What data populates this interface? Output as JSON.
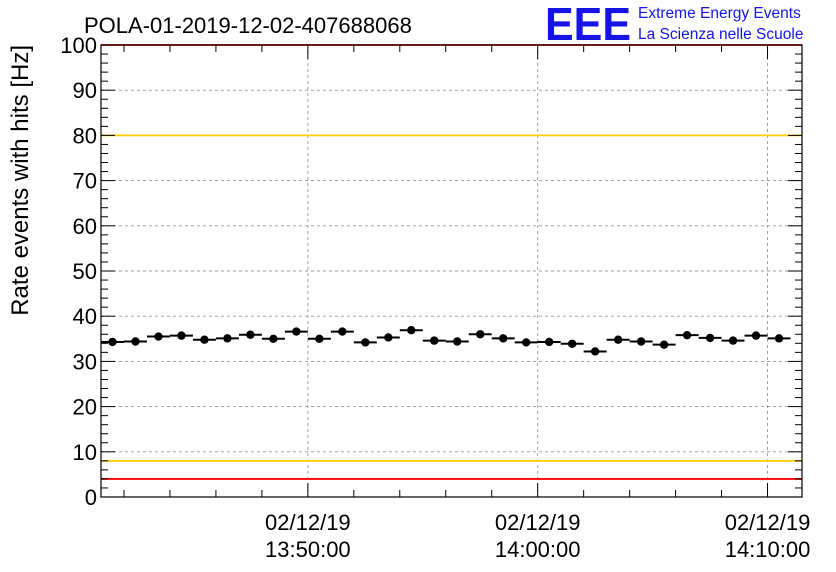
{
  "chart_data": {
    "type": "scatter",
    "title": "POLA-01-2019-12-02-407688068",
    "ylabel": "Rate events with hits [Hz]",
    "xlabel": "",
    "ylim": [
      0,
      100
    ],
    "yticks": [
      0,
      10,
      20,
      30,
      40,
      50,
      60,
      70,
      80,
      90,
      100
    ],
    "xlim_minutes": [
      0,
      30.5
    ],
    "xticks": [
      {
        "minute": 9,
        "date": "02/12/19",
        "time": "13:50:00"
      },
      {
        "minute": 19,
        "date": "02/12/19",
        "time": "14:00:00"
      },
      {
        "minute": 29,
        "date": "02/12/19",
        "time": "14:10:00"
      }
    ],
    "grid": true,
    "reference_lines": [
      {
        "value": 100,
        "color": "#ff0000"
      },
      {
        "value": 80,
        "color": "#ffcc00"
      },
      {
        "value": 8,
        "color": "#ffcc00"
      },
      {
        "value": 4,
        "color": "#ff0000"
      }
    ],
    "marker_color": "#000000",
    "series": [
      {
        "x_minutes": [
          0.5,
          1.5,
          2.5,
          3.5,
          4.5,
          5.5,
          6.5,
          7.5,
          8.5,
          9.5,
          10.5,
          11.5,
          12.5,
          13.5,
          14.5,
          15.5,
          16.5,
          17.5,
          18.5,
          19.5,
          20.5,
          21.5,
          22.5,
          23.5,
          24.5,
          25.5,
          26.5,
          27.5,
          28.5,
          29.5
        ],
        "values": [
          34.3,
          34.4,
          35.5,
          35.7,
          34.8,
          35.1,
          35.9,
          35.0,
          36.6,
          35.0,
          36.6,
          34.2,
          35.3,
          36.9,
          34.6,
          34.4,
          36.0,
          35.1,
          34.2,
          34.3,
          33.9,
          32.2,
          34.8,
          34.4,
          33.7,
          35.8,
          35.2,
          34.6,
          35.7,
          35.1
        ]
      }
    ]
  },
  "logo": {
    "letters": "EEE",
    "line1": "Extreme Energy Events",
    "line2": "La Scienza nelle Scuole"
  }
}
